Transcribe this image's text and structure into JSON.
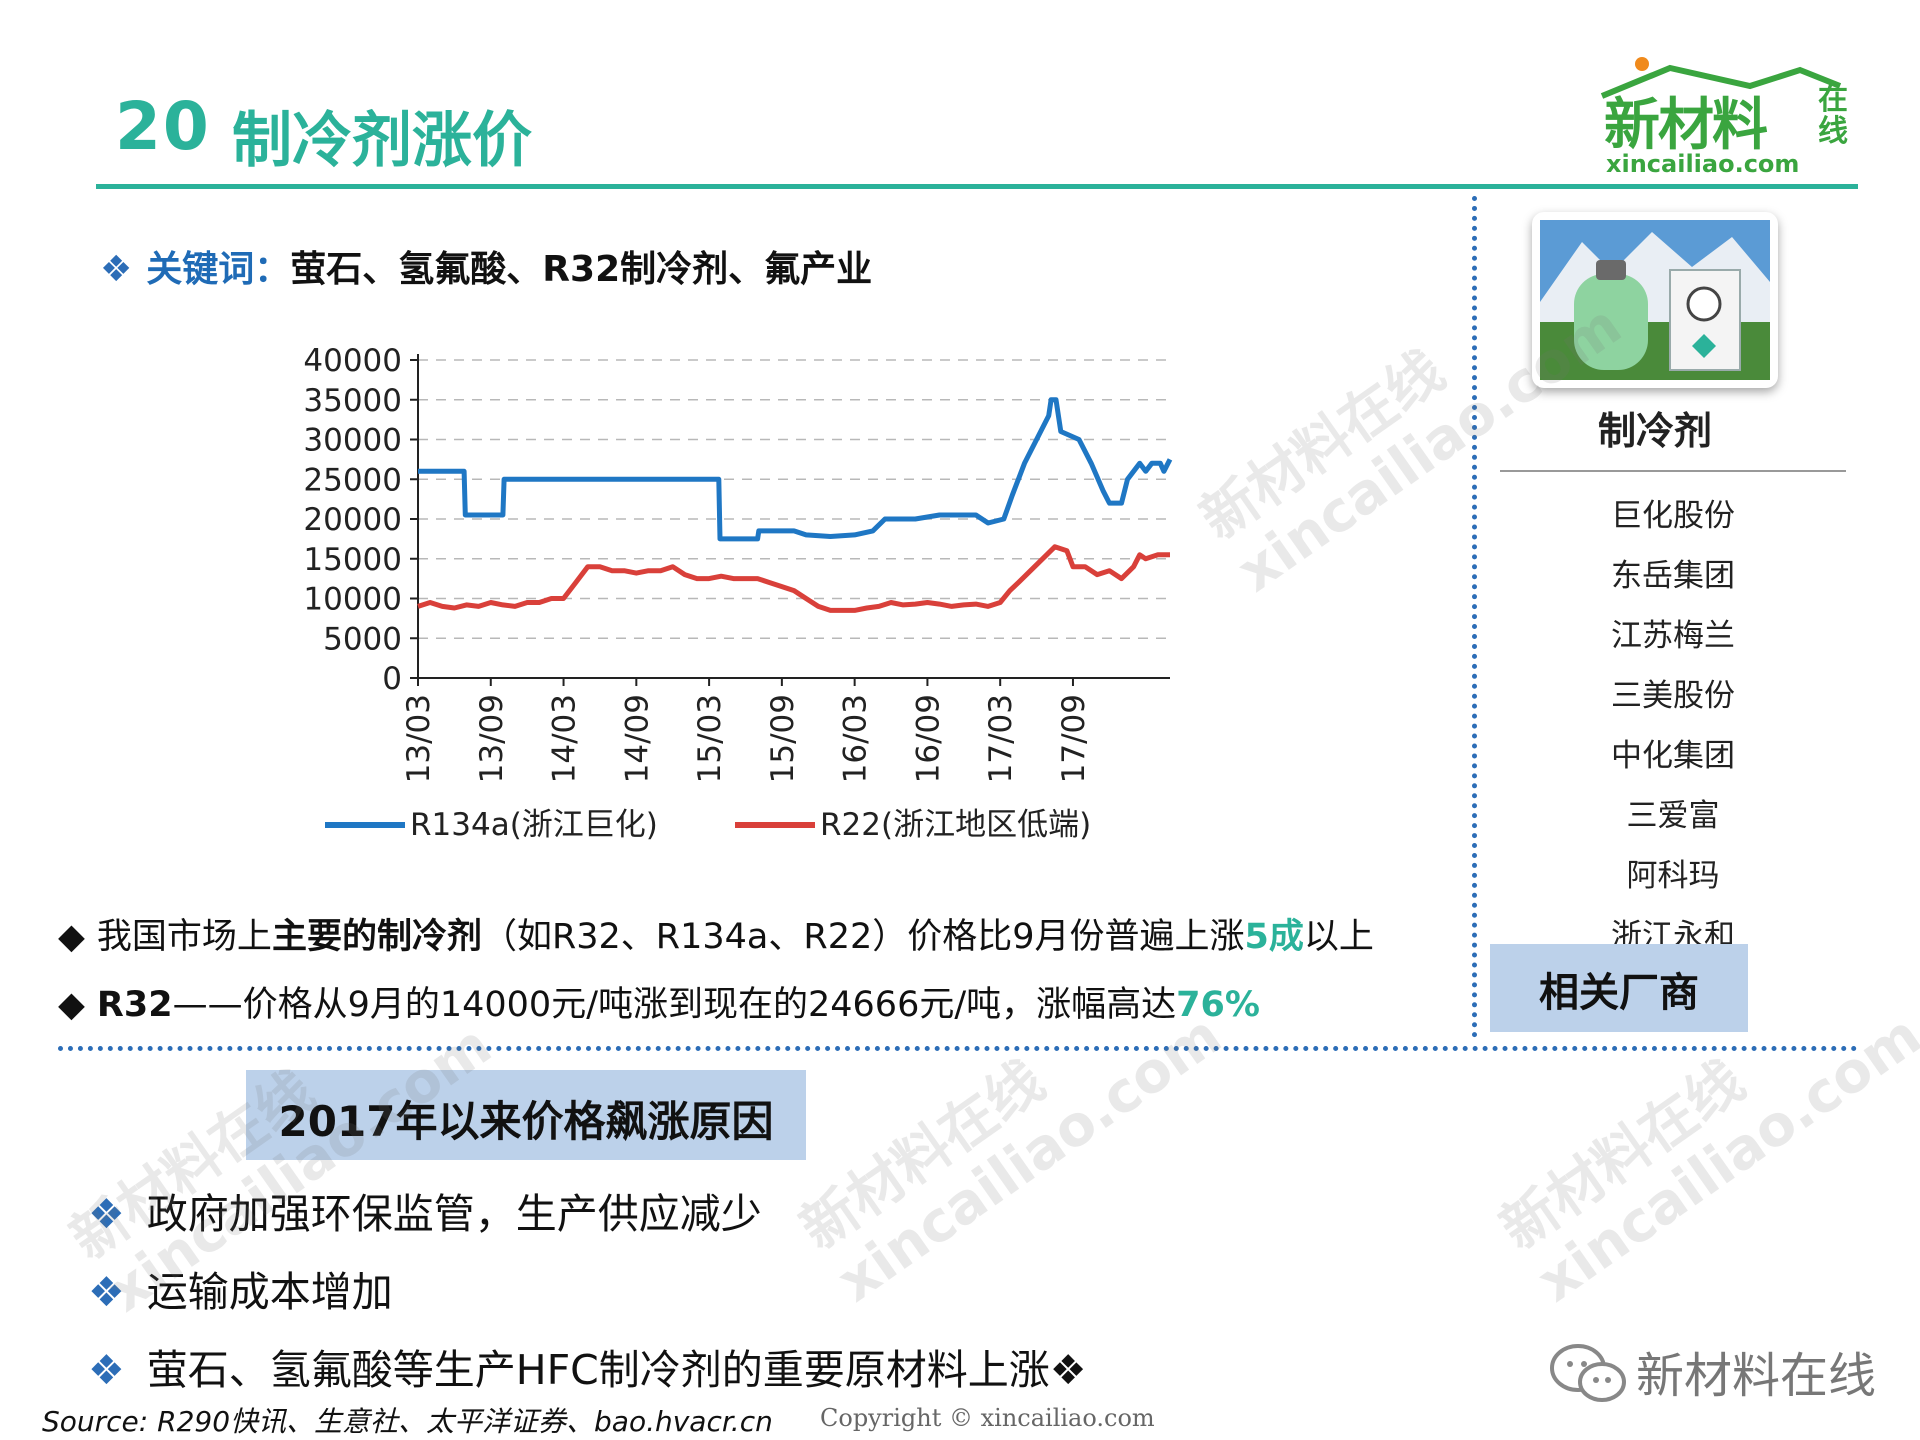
{
  "header": {
    "number": "20",
    "title": "制冷剂涨价"
  },
  "logo": {
    "name": "新材料",
    "name_side": "在线",
    "url": "xincailiao.com"
  },
  "keywords": {
    "label": "关键词：",
    "value": "萤石、氢氟酸、R32制冷剂、氟产业"
  },
  "chart_data": {
    "type": "line",
    "title": "",
    "xlabel": "",
    "ylabel": "",
    "ylim": [
      0,
      40000
    ],
    "yticks": [
      "40000",
      "35000",
      "30000",
      "25000",
      "20000",
      "15000",
      "10000",
      "5000",
      "0"
    ],
    "xticks": [
      "13/03",
      "13/09",
      "14/03",
      "14/09",
      "15/03",
      "15/09",
      "16/03",
      "16/09",
      "17/03",
      "17/09"
    ],
    "grid": true,
    "legend_position": "bottom",
    "series": [
      {
        "name": "R134a(浙江巨化)",
        "color": "#1f77c4",
        "points": [
          [
            0,
            26000
          ],
          [
            3.8,
            26000
          ],
          [
            3.9,
            20500
          ],
          [
            7,
            20500
          ],
          [
            7.1,
            25000
          ],
          [
            24.8,
            25000
          ],
          [
            24.9,
            17500
          ],
          [
            28,
            17500
          ],
          [
            28.1,
            18500
          ],
          [
            31,
            18500
          ],
          [
            32,
            18000
          ],
          [
            34,
            17800
          ],
          [
            36,
            18000
          ],
          [
            37.5,
            18500
          ],
          [
            38.5,
            20000
          ],
          [
            41,
            20000
          ],
          [
            43,
            20500
          ],
          [
            46,
            20500
          ],
          [
            47,
            19500
          ],
          [
            48.3,
            20000
          ],
          [
            49,
            23000
          ],
          [
            50,
            27000
          ],
          [
            51,
            30000
          ],
          [
            52,
            33000
          ],
          [
            52.2,
            35000
          ],
          [
            52.6,
            35000
          ],
          [
            53,
            31000
          ],
          [
            54.5,
            30000
          ],
          [
            55.5,
            27000
          ],
          [
            56.5,
            23500
          ],
          [
            57,
            22000
          ],
          [
            58,
            22000
          ],
          [
            58.5,
            25000
          ],
          [
            59.5,
            27000
          ],
          [
            60,
            26000
          ],
          [
            60.5,
            27000
          ],
          [
            61.2,
            27000
          ],
          [
            61.5,
            26000
          ],
          [
            62,
            27500
          ]
        ]
      },
      {
        "name": "R22(浙江地区低端)",
        "color": "#d9403a",
        "points": [
          [
            0,
            9000
          ],
          [
            1,
            9500
          ],
          [
            2,
            9000
          ],
          [
            3,
            8800
          ],
          [
            4,
            9200
          ],
          [
            5,
            9000
          ],
          [
            6,
            9500
          ],
          [
            7,
            9200
          ],
          [
            8,
            9000
          ],
          [
            9,
            9500
          ],
          [
            10,
            9500
          ],
          [
            11,
            10000
          ],
          [
            12,
            10000
          ],
          [
            13,
            12000
          ],
          [
            14,
            14000
          ],
          [
            15,
            14000
          ],
          [
            16,
            13500
          ],
          [
            17,
            13500
          ],
          [
            18,
            13200
          ],
          [
            19,
            13500
          ],
          [
            20,
            13500
          ],
          [
            21,
            14000
          ],
          [
            22,
            13000
          ],
          [
            23,
            12500
          ],
          [
            24,
            12500
          ],
          [
            25,
            12800
          ],
          [
            26,
            12500
          ],
          [
            27,
            12500
          ],
          [
            28,
            12500
          ],
          [
            29,
            12000
          ],
          [
            30,
            11500
          ],
          [
            31,
            11000
          ],
          [
            32,
            10000
          ],
          [
            33,
            9000
          ],
          [
            34,
            8500
          ],
          [
            35,
            8500
          ],
          [
            36,
            8500
          ],
          [
            37,
            8800
          ],
          [
            38,
            9000
          ],
          [
            39,
            9500
          ],
          [
            40,
            9200
          ],
          [
            41,
            9300
          ],
          [
            42,
            9500
          ],
          [
            43,
            9300
          ],
          [
            44,
            9000
          ],
          [
            45,
            9200
          ],
          [
            46,
            9300
          ],
          [
            47,
            9000
          ],
          [
            48,
            9500
          ],
          [
            48.8,
            11000
          ],
          [
            49.5,
            12000
          ],
          [
            50.5,
            13500
          ],
          [
            51.5,
            15000
          ],
          [
            52.5,
            16500
          ],
          [
            53.5,
            16000
          ],
          [
            54,
            14000
          ],
          [
            55,
            14000
          ],
          [
            56,
            13000
          ],
          [
            57,
            13500
          ],
          [
            58,
            12500
          ],
          [
            59,
            14000
          ],
          [
            59.5,
            15500
          ],
          [
            60,
            15000
          ],
          [
            61,
            15500
          ],
          [
            62,
            15500
          ]
        ]
      }
    ]
  },
  "bullets": [
    {
      "symbol": "◆",
      "p1": "我国市场上",
      "bold": "主要的制冷剂",
      "p2": "（如R32、R134a、R22）价格比9月份普遍上涨",
      "highlight": "5成",
      "p3": "以上"
    },
    {
      "symbol": "◆",
      "bold": "R32",
      "p1": "——价格从9月的14000元/吨涨到现在的24666元/吨，涨幅高达",
      "highlight": "76%"
    }
  ],
  "panel": {
    "product_title": "制冷剂",
    "companies": [
      "巨化股份",
      "东岳集团",
      "江苏梅兰",
      "三美股份",
      "中化集团",
      "三爱富",
      "阿科玛",
      "浙江永和"
    ],
    "makers_label": "相关厂商",
    "colors": {
      "sky": "#5b9bd5",
      "mountain": "#e9eef4",
      "grass": "#4a8a3a",
      "cylinder": "#8ed3a0"
    }
  },
  "reasons": {
    "title": "2017年以来价格飙涨原因",
    "symbol": "❖",
    "items": [
      "政府加强环保监管，生产供应减少",
      "运输成本增加",
      "萤石、氢氟酸等生产HFC制冷剂的重要原材料上涨❖"
    ]
  },
  "footer": {
    "source": "Source: R290快讯、生意社、太平洋证券、bao.hvacr.cn",
    "copyright": "Copyright © xincailiao.com",
    "wechat": "新材料在线"
  },
  "watermark": {
    "cn": "新材料在线",
    "en": "xincailiao.com"
  }
}
